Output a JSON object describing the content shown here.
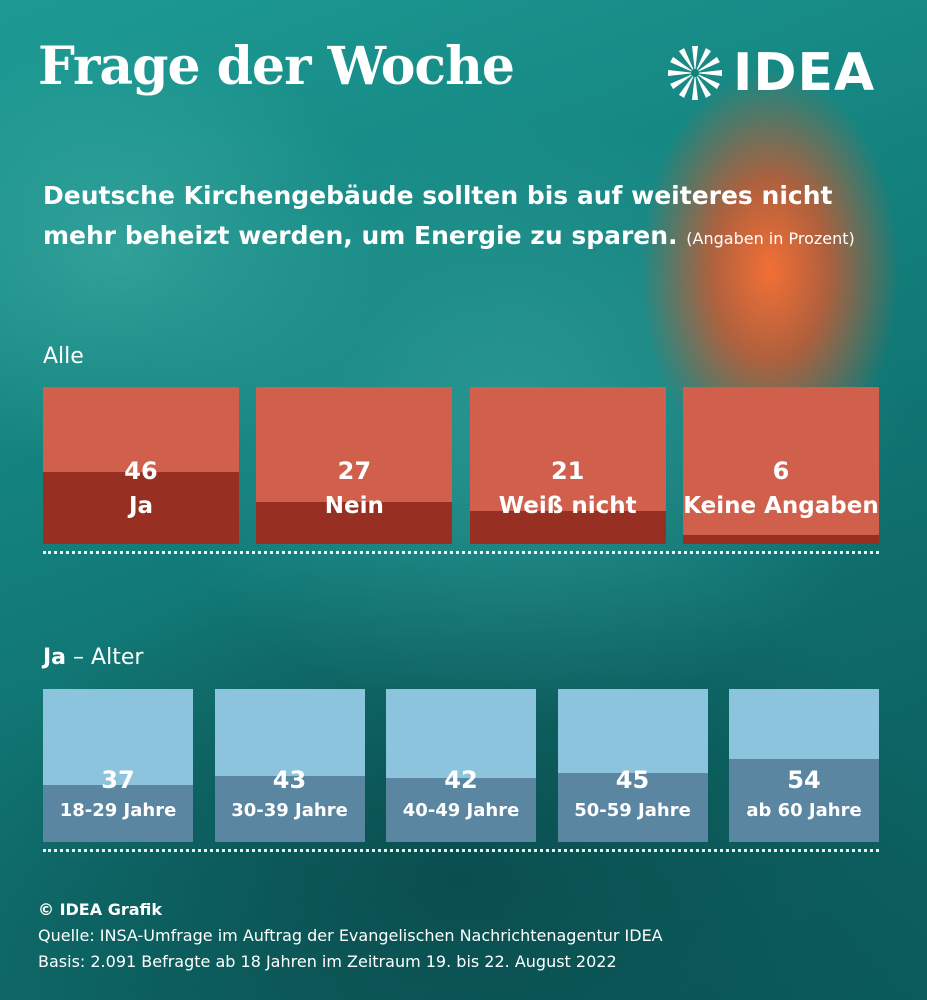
{
  "header": {
    "title": "Frage der Woche",
    "logo_text": "IDEA"
  },
  "question": {
    "text": "Deutsche Kirchengebäude sollten bis auf weiteres nicht mehr beheizt werden, um Energie zu sparen.",
    "note": "(Angaben in Prozent)"
  },
  "colors": {
    "red_box": "#d05f4c",
    "red_fill": "#972f22",
    "blue_box": "#8cc3dd",
    "blue_fill": "#5b86a2"
  },
  "chart_data": [
    {
      "type": "bar",
      "title": "Alle",
      "categories": [
        "Ja",
        "Nein",
        "Weiß nicht",
        "Keine Angaben"
      ],
      "values": [
        46,
        27,
        21,
        6
      ],
      "ylim": [
        0,
        100
      ]
    },
    {
      "type": "bar",
      "title_bold": "Ja",
      "title_dash": "–",
      "title_rest": "Alter",
      "categories": [
        "18-29 Jahre",
        "30-39 Jahre",
        "40-49 Jahre",
        "50-59 Jahre",
        "ab 60 Jahre"
      ],
      "values": [
        37,
        43,
        42,
        45,
        54
      ],
      "ylim": [
        0,
        100
      ]
    }
  ],
  "footer": {
    "credit": "© IDEA Grafik",
    "source": "Quelle: INSA-Umfrage im Auftrag der Evangelischen Nachrichtenagentur IDEA",
    "basis": "Basis: 2.091 Befragte ab 18 Jahren im Zeitraum 19. bis 22. August 2022"
  }
}
